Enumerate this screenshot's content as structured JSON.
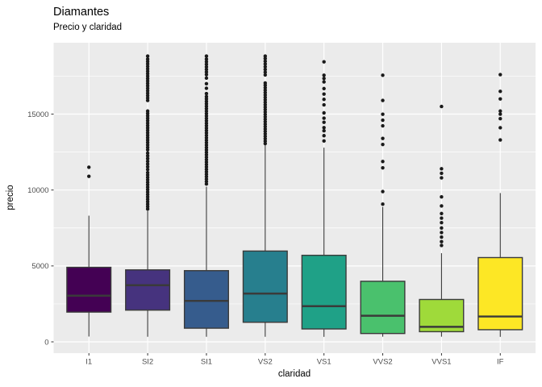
{
  "title": "Diamantes",
  "subtitle": "Precio y claridad",
  "chart_data": {
    "type": "boxplot",
    "title": "Diamantes",
    "subtitle": "Precio y claridad",
    "xlabel": "claridad",
    "ylabel": "precio",
    "categories": [
      "I1",
      "SI2",
      "SI1",
      "VS2",
      "VS1",
      "VVS2",
      "VVS1",
      "IF"
    ],
    "yticks": [
      0,
      5000,
      10000,
      15000
    ],
    "yminor": [
      2500,
      7500,
      12500,
      17500
    ],
    "ylim": [
      -743,
      19700
    ],
    "grid_on": true,
    "legend": "none",
    "panel_bg": "#EBEBEB",
    "grid_major_color": "#FFFFFF",
    "grid_minor_color": "#FFFFFF",
    "box_border_color": "#3A3A3A",
    "outlier_color": "#1A1A1A",
    "tick_mark_color": "#333333",
    "tick_label_color": "#4D4D4D",
    "series": [
      {
        "category": "I1",
        "fill": "#440154",
        "low": 350,
        "q1": 1960,
        "median": 3040,
        "q3": 4910,
        "high": 8310,
        "outliers": [
          10900,
          11500
        ]
      },
      {
        "category": "SI2",
        "fill": "#46337E",
        "low": 335,
        "q1": 2090,
        "median": 3730,
        "q3": 4740,
        "high": 8630,
        "outliers": [
          8750,
          8910,
          9070,
          9230,
          9390,
          9550,
          9710,
          9870,
          10030,
          10190,
          10350,
          10510,
          10670,
          10830,
          10990,
          11150,
          11350,
          11530,
          11710,
          11890,
          12070,
          12250,
          12430,
          12650,
          12810,
          12970,
          13130,
          13290,
          13450,
          13610,
          13770,
          13930,
          14090,
          14250,
          14410,
          14570,
          14730,
          14890,
          15050,
          15200,
          15900,
          16060,
          16220,
          16380,
          16540,
          16700,
          16860,
          17020,
          17180,
          17340,
          17500,
          17660,
          17820,
          17980,
          18140,
          18300,
          18460,
          18620,
          18820
        ]
      },
      {
        "category": "SI1",
        "fill": "#365C8D",
        "low": 335,
        "q1": 900,
        "median": 2700,
        "q3": 4690,
        "high": 10220,
        "outliers": [
          10400,
          10560,
          10720,
          10880,
          11040,
          11200,
          11360,
          11520,
          11680,
          11840,
          12000,
          12160,
          12320,
          12480,
          12640,
          12800,
          12960,
          13120,
          13280,
          13440,
          13600,
          13760,
          13920,
          14080,
          14240,
          14400,
          14560,
          14720,
          14880,
          15040,
          15200,
          15360,
          15520,
          15680,
          15840,
          16000,
          16150,
          16350,
          16700,
          17000,
          17370,
          17600,
          17770,
          17940,
          18110,
          18280,
          18450,
          18620,
          18820
        ]
      },
      {
        "category": "VS2",
        "fill": "#277F8E",
        "low": 334,
        "q1": 1290,
        "median": 3180,
        "q3": 5980,
        "high": 12960,
        "outliers": [
          13060,
          13220,
          13380,
          13540,
          13700,
          13860,
          14020,
          14180,
          14340,
          14500,
          14660,
          14820,
          14980,
          15140,
          15300,
          15460,
          15620,
          15780,
          15940,
          16100,
          16260,
          16420,
          16580,
          16740,
          16900,
          17050,
          17580,
          17760,
          17940,
          18120,
          18300,
          18480,
          18660,
          18820
        ]
      },
      {
        "category": "VS1",
        "fill": "#1FA187",
        "low": 330,
        "q1": 850,
        "median": 2350,
        "q3": 5700,
        "high": 12790,
        "outliers": [
          13230,
          13580,
          13900,
          14110,
          14460,
          14730,
          15080,
          15610,
          15970,
          16320,
          16680,
          17120,
          17350,
          17560,
          18440
        ]
      },
      {
        "category": "VVS2",
        "fill": "#4AC16D",
        "low": 340,
        "q1": 550,
        "median": 1720,
        "q3": 3990,
        "high": 8890,
        "outliers": [
          9070,
          9900,
          11460,
          11880,
          13000,
          13400,
          14230,
          14600,
          14990,
          15900,
          17560
        ]
      },
      {
        "category": "VVS1",
        "fill": "#9FDA3A",
        "low": 340,
        "q1": 670,
        "median": 990,
        "q3": 2790,
        "high": 5840,
        "outliers": [
          6350,
          6600,
          6900,
          7200,
          7500,
          7850,
          8150,
          8450,
          8950,
          9550,
          10800,
          11100,
          11400,
          15500
        ]
      },
      {
        "category": "IF",
        "fill": "#FDE725",
        "low": 330,
        "q1": 800,
        "median": 1670,
        "q3": 5550,
        "high": 9800,
        "outliers": [
          13300,
          14100,
          14700,
          15000,
          15200,
          16000,
          16500,
          17600
        ]
      }
    ]
  }
}
